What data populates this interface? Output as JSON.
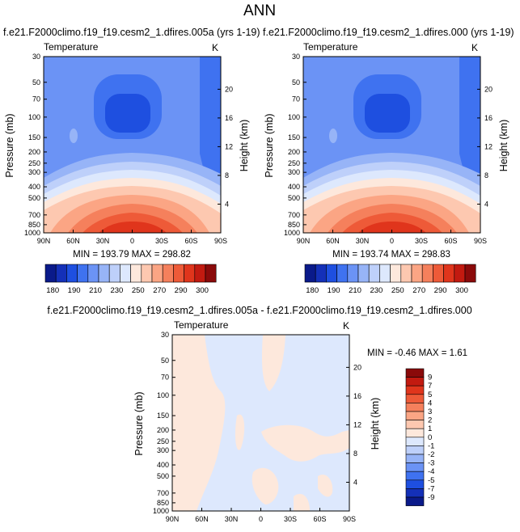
{
  "page_title": "ANN",
  "chart_data": [
    {
      "type": "heatmap",
      "subtitle": "f.e21.F2000climo.f19_f19.cesm2_1.dfires.005a (yrs 1-19)",
      "variable": "Temperature",
      "units": "K",
      "xlabel": "",
      "ylabel": "Pressure (mb)",
      "y2label": "Height (km)",
      "x_ticks": [
        "90N",
        "60N",
        "30N",
        "0",
        "30S",
        "60S",
        "90S"
      ],
      "y_ticks": [
        "30",
        "50",
        "70",
        "100",
        "150",
        "200",
        "250",
        "300",
        "400",
        "500",
        "700",
        "850",
        "1000"
      ],
      "y2_ticks": [
        "20",
        "16",
        "12",
        "8",
        "4"
      ],
      "stats": "MIN = 193.79   MAX = 298.82",
      "colorbar_labels": [
        "180",
        "190",
        "210",
        "230",
        "250",
        "270",
        "290",
        "300"
      ],
      "colorbar_colors": [
        "#0a1a8a",
        "#1430b8",
        "#1e4fe0",
        "#3f72f0",
        "#6b93f5",
        "#97b4f7",
        "#bed0fa",
        "#dde8fd",
        "#fde8dc",
        "#fdc8b0",
        "#fba584",
        "#f5805c",
        "#ee5a38",
        "#e0351c",
        "#c21a10",
        "#8a0a0a"
      ],
      "approx_fields": {
        "tropopause_minimum_K": 195,
        "surface_tropics_K": 299,
        "surface_poles_K": 245
      }
    },
    {
      "type": "heatmap",
      "subtitle": "f.e21.F2000climo.f19_f19.cesm2_1.dfires.000 (yrs 1-19)",
      "variable": "Temperature",
      "units": "K",
      "xlabel": "",
      "ylabel": "Pressure (mb)",
      "y2label": "Height (km)",
      "x_ticks": [
        "90N",
        "60N",
        "30N",
        "0",
        "30S",
        "60S",
        "90S"
      ],
      "y_ticks": [
        "30",
        "50",
        "70",
        "100",
        "150",
        "200",
        "250",
        "300",
        "400",
        "500",
        "700",
        "850",
        "1000"
      ],
      "y2_ticks": [
        "20",
        "16",
        "12",
        "8",
        "4"
      ],
      "stats": "MIN = 193.74   MAX = 298.83",
      "colorbar_labels": [
        "180",
        "190",
        "210",
        "230",
        "250",
        "270",
        "290",
        "300"
      ],
      "colorbar_colors": [
        "#0a1a8a",
        "#1430b8",
        "#1e4fe0",
        "#3f72f0",
        "#6b93f5",
        "#97b4f7",
        "#bed0fa",
        "#dde8fd",
        "#fde8dc",
        "#fdc8b0",
        "#fba584",
        "#f5805c",
        "#ee5a38",
        "#e0351c",
        "#c21a10",
        "#8a0a0a"
      ]
    },
    {
      "type": "heatmap",
      "subtitle": "f.e21.F2000climo.f19_f19.cesm2_1.dfires.005a - f.e21.F2000climo.f19_f19.cesm2_1.dfires.000",
      "variable": "Temperature",
      "units": "K",
      "xlabel": "",
      "ylabel": "Pressure (mb)",
      "y2label": "Height (km)",
      "x_ticks": [
        "90N",
        "60N",
        "30N",
        "0",
        "30S",
        "60S",
        "90S"
      ],
      "y_ticks": [
        "30",
        "50",
        "70",
        "100",
        "150",
        "200",
        "250",
        "300",
        "400",
        "500",
        "700",
        "850",
        "1000"
      ],
      "y2_ticks": [
        "20",
        "16",
        "12",
        "8",
        "4"
      ],
      "stats": "MIN = -0.46   MAX =   1.61",
      "colorbar_labels": [
        "9",
        "7",
        "5",
        "4",
        "3",
        "2",
        "1",
        "0",
        "-1",
        "-2",
        "-3",
        "-4",
        "-5",
        "-7",
        "-9"
      ],
      "colorbar_colors": [
        "#8a0a0a",
        "#c21a10",
        "#e0351c",
        "#ee5a38",
        "#f5805c",
        "#fba584",
        "#fdc8b0",
        "#fde8dc",
        "#dde8fd",
        "#bed0fa",
        "#97b4f7",
        "#6b93f5",
        "#3f72f0",
        "#1e4fe0",
        "#1430b8",
        "#0a1a8a"
      ]
    }
  ]
}
